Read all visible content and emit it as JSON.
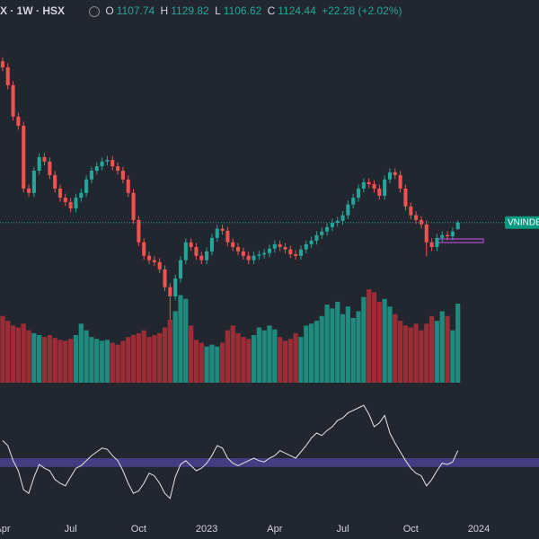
{
  "legend": {
    "symbol": "X · 1W · HSX",
    "items": [
      {
        "label": "O",
        "value": "1107.74"
      },
      {
        "label": "H",
        "value": "1129.82"
      },
      {
        "label": "L",
        "value": "1106.62"
      },
      {
        "label": "C",
        "value": "1124.44"
      }
    ],
    "change": "+22.28 (+2.02%)"
  },
  "chart_data": {
    "type": "candlestick",
    "name": "VNINDEX",
    "open": [
      1530,
      1515,
      1470,
      1391,
      1368,
      1210,
      1199,
      1255,
      1289,
      1278,
      1244,
      1210,
      1187,
      1176,
      1160,
      1187,
      1199,
      1233,
      1255,
      1266,
      1278,
      1282,
      1266,
      1255,
      1233,
      1199,
      1131,
      1075,
      1041,
      1030,
      1025,
      1007,
      962,
      939,
      984,
      1030,
      1075,
      1063,
      1041,
      1030,
      1052,
      1086,
      1109,
      1104,
      1075,
      1063,
      1052,
      1041,
      1030,
      1041,
      1044,
      1048,
      1059,
      1070,
      1063,
      1057,
      1045,
      1041,
      1057,
      1070,
      1079,
      1093,
      1102,
      1113,
      1124,
      1129,
      1143,
      1170,
      1187,
      1210,
      1226,
      1221,
      1210,
      1192,
      1233,
      1251,
      1244,
      1210,
      1165,
      1143,
      1131,
      1120,
      1075,
      1063,
      1086,
      1093,
      1090,
      1107.74
    ],
    "high": [
      1540,
      1525,
      1480,
      1401,
      1378,
      1220,
      1265,
      1299,
      1299,
      1288,
      1254,
      1220,
      1197,
      1186,
      1197,
      1209,
      1243,
      1265,
      1276,
      1288,
      1292,
      1292,
      1276,
      1265,
      1243,
      1209,
      1141,
      1085,
      1051,
      1040,
      1035,
      1017,
      972,
      994,
      1040,
      1085,
      1085,
      1073,
      1051,
      1062,
      1096,
      1119,
      1119,
      1114,
      1085,
      1073,
      1062,
      1051,
      1051,
      1054,
      1058,
      1069,
      1080,
      1080,
      1073,
      1067,
      1055,
      1067,
      1080,
      1089,
      1103,
      1112,
      1123,
      1134,
      1139,
      1153,
      1180,
      1197,
      1220,
      1236,
      1236,
      1231,
      1220,
      1243,
      1261,
      1261,
      1254,
      1220,
      1175,
      1153,
      1141,
      1130,
      1085,
      1096,
      1103,
      1103,
      1112,
      1129.82
    ],
    "low": [
      1505,
      1460,
      1381,
      1358,
      1200,
      1189,
      1189,
      1245,
      1268,
      1234,
      1200,
      1177,
      1166,
      1150,
      1150,
      1177,
      1189,
      1223,
      1245,
      1256,
      1268,
      1256,
      1245,
      1223,
      1189,
      1121,
      1065,
      1031,
      1020,
      1015,
      997,
      952,
      880,
      929,
      974,
      1020,
      1053,
      1031,
      1020,
      1020,
      1042,
      1076,
      1094,
      1065,
      1053,
      1042,
      1031,
      1020,
      1020,
      1031,
      1034,
      1038,
      1049,
      1053,
      1047,
      1035,
      1031,
      1031,
      1047,
      1060,
      1069,
      1083,
      1092,
      1103,
      1114,
      1119,
      1133,
      1160,
      1177,
      1200,
      1211,
      1200,
      1182,
      1182,
      1223,
      1234,
      1200,
      1155,
      1133,
      1121,
      1110,
      1040,
      1053,
      1053,
      1076,
      1080,
      1080,
      1106.62
    ],
    "close": [
      1515,
      1470,
      1391,
      1368,
      1210,
      1199,
      1255,
      1289,
      1278,
      1244,
      1210,
      1187,
      1176,
      1160,
      1187,
      1199,
      1233,
      1255,
      1266,
      1278,
      1282,
      1266,
      1255,
      1233,
      1199,
      1131,
      1075,
      1041,
      1030,
      1025,
      1007,
      962,
      939,
      984,
      1030,
      1075,
      1063,
      1041,
      1030,
      1052,
      1086,
      1109,
      1104,
      1075,
      1063,
      1052,
      1041,
      1030,
      1041,
      1044,
      1048,
      1059,
      1070,
      1063,
      1057,
      1045,
      1041,
      1057,
      1070,
      1079,
      1093,
      1102,
      1113,
      1124,
      1129,
      1143,
      1170,
      1187,
      1210,
      1226,
      1221,
      1210,
      1192,
      1233,
      1251,
      1244,
      1210,
      1165,
      1143,
      1131,
      1120,
      1075,
      1063,
      1086,
      1093,
      1090,
      1102,
      1124.44
    ],
    "volume": [
      70,
      65,
      60,
      58,
      62,
      55,
      52,
      50,
      48,
      50,
      47,
      45,
      44,
      46,
      50,
      62,
      55,
      48,
      46,
      44,
      45,
      42,
      40,
      44,
      48,
      50,
      52,
      55,
      48,
      50,
      52,
      58,
      66,
      75,
      92,
      88,
      60,
      45,
      42,
      38,
      40,
      38,
      42,
      55,
      60,
      52,
      48,
      46,
      50,
      58,
      55,
      60,
      56,
      48,
      44,
      46,
      52,
      48,
      60,
      62,
      65,
      70,
      82,
      78,
      85,
      72,
      80,
      68,
      75,
      90,
      98,
      95,
      85,
      88,
      80,
      72,
      65,
      60,
      58,
      62,
      55,
      62,
      70,
      65,
      75,
      70,
      55,
      83
    ],
    "rsi": [
      64,
      60,
      48,
      40,
      25,
      22,
      35,
      45,
      42,
      40,
      33,
      30,
      28,
      35,
      42,
      44,
      48,
      52,
      55,
      58,
      57,
      52,
      48,
      40,
      30,
      22,
      24,
      30,
      38,
      36,
      30,
      22,
      18,
      35,
      45,
      48,
      44,
      40,
      42,
      46,
      52,
      60,
      58,
      50,
      46,
      44,
      46,
      48,
      50,
      48,
      47,
      50,
      52,
      56,
      54,
      52,
      50,
      55,
      60,
      66,
      70,
      68,
      72,
      75,
      80,
      82,
      86,
      88,
      90,
      92,
      85,
      75,
      78,
      84,
      70,
      62,
      55,
      48,
      42,
      38,
      36,
      28,
      33,
      40,
      46,
      45,
      47,
      56
    ],
    "rsi_band": [
      43,
      50
    ],
    "xlim": [
      -0.5,
      102.5
    ],
    "ylim": [
      871,
      1639
    ],
    "volume_ylim": [
      0,
      100
    ],
    "rsi_ylim": [
      0,
      100
    ],
    "xticks": [
      {
        "value": 0,
        "label": "Apr"
      },
      {
        "value": 13,
        "label": "Jul"
      },
      {
        "value": 26,
        "label": "Oct"
      },
      {
        "value": 39,
        "label": "2023"
      },
      {
        "value": 52,
        "label": "Apr"
      },
      {
        "value": 65,
        "label": "Jul"
      },
      {
        "value": 78,
        "label": "Oct"
      },
      {
        "value": 91,
        "label": "2024"
      }
    ],
    "colors": {
      "up": "#26a69a",
      "down": "#ef5350",
      "volume_up": "#1f8a7d",
      "volume_down": "#9b2d36",
      "rsi": "#e6e6e6",
      "band": "#4b418f"
    }
  }
}
